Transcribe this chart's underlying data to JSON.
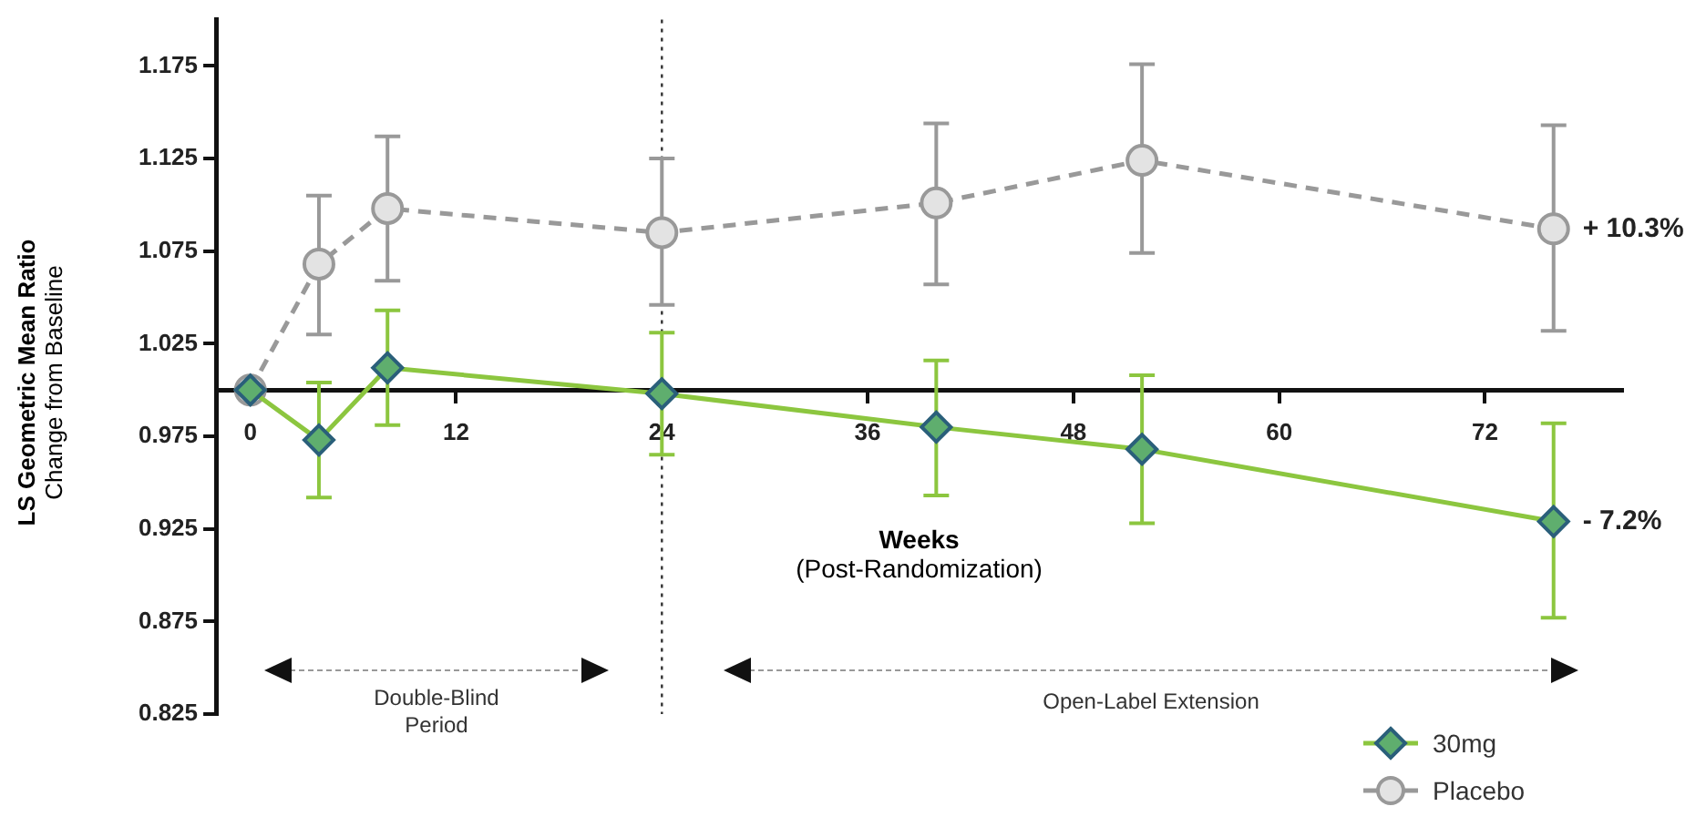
{
  "chart_data": {
    "type": "line",
    "xlabel": "Weeks\n(Post-Randomization)",
    "ylabel": "LS Geometric Mean Ratio\nChange from Baseline",
    "xlim": [
      -2,
      80
    ],
    "ylim": [
      0.825,
      1.2
    ],
    "xticks": [
      0,
      12,
      24,
      36,
      48,
      60,
      72
    ],
    "yticks": [
      0.825,
      0.875,
      0.925,
      0.975,
      1.025,
      1.075,
      1.125,
      1.175
    ],
    "grid": false,
    "legend": "bottom right",
    "series": [
      {
        "name": "30mg",
        "color": "#8cc63f",
        "marker": "diamond",
        "line_style": "solid",
        "x": [
          0,
          4,
          8,
          24,
          40,
          52,
          76
        ],
        "values": [
          1.0,
          0.973,
          1.012,
          0.998,
          0.98,
          0.968,
          0.929
        ],
        "errors": [
          null,
          [
            0.942,
            1.004
          ],
          [
            0.981,
            1.043
          ],
          [
            0.965,
            1.031
          ],
          [
            0.943,
            1.016
          ],
          [
            0.928,
            1.008
          ],
          [
            0.877,
            0.982
          ]
        ]
      },
      {
        "name": "Placebo",
        "color": "#999999",
        "marker": "circle",
        "line_style": "dashed",
        "x": [
          0,
          4,
          8,
          24,
          40,
          52,
          76
        ],
        "values": [
          1.0,
          1.068,
          1.098,
          1.085,
          1.101,
          1.124,
          1.087
        ],
        "errors": [
          null,
          [
            1.03,
            1.105
          ],
          [
            1.059,
            1.137
          ],
          [
            1.046,
            1.125
          ],
          [
            1.057,
            1.144
          ],
          [
            1.074,
            1.176
          ],
          [
            1.032,
            1.143
          ]
        ]
      }
    ],
    "ref_lines": [
      {
        "axis": "x",
        "value": 24,
        "line_style": "dotted",
        "color": "#333333"
      }
    ],
    "annotations": [
      {
        "text": "+ 10.3%",
        "x": 76,
        "y": 1.087
      },
      {
        "text": "- 7.2%",
        "x": 76,
        "y": 0.929
      },
      "Double-Blind\nPeriod",
      "Open-Label Extension"
    ]
  }
}
